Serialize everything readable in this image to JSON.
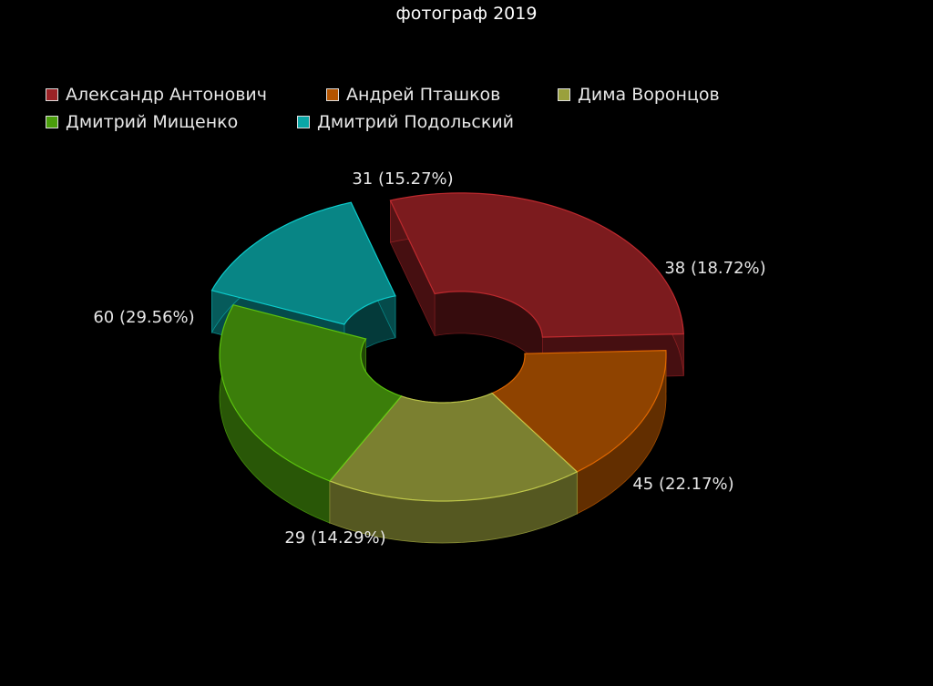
{
  "chart_data": {
    "type": "pie",
    "variant": "3d-donut",
    "title": "фотограф 2019",
    "categories": [
      "Александр Антонович",
      "Андрей Пташков",
      "Дима Воронцов",
      "Дмитрий Мищенко",
      "Дмитрий Подольский"
    ],
    "values": [
      60,
      31,
      38,
      45,
      29
    ],
    "percent": [
      "29.56%",
      "15.27%",
      "18.72%",
      "22.17%",
      "14.29%"
    ],
    "data_labels": [
      "60 (29.56%)",
      "31 (15.27%)",
      "38 (18.72%)",
      "45 (22.17%)",
      "29 (14.29%)"
    ],
    "colors": [
      "#9b2226",
      "#b35400",
      "#9aa03c",
      "#4a9e0c",
      "#0aa6a6"
    ],
    "exploded": [
      true,
      false,
      false,
      false,
      true
    ],
    "legend_position": "top",
    "background": "#000000"
  }
}
